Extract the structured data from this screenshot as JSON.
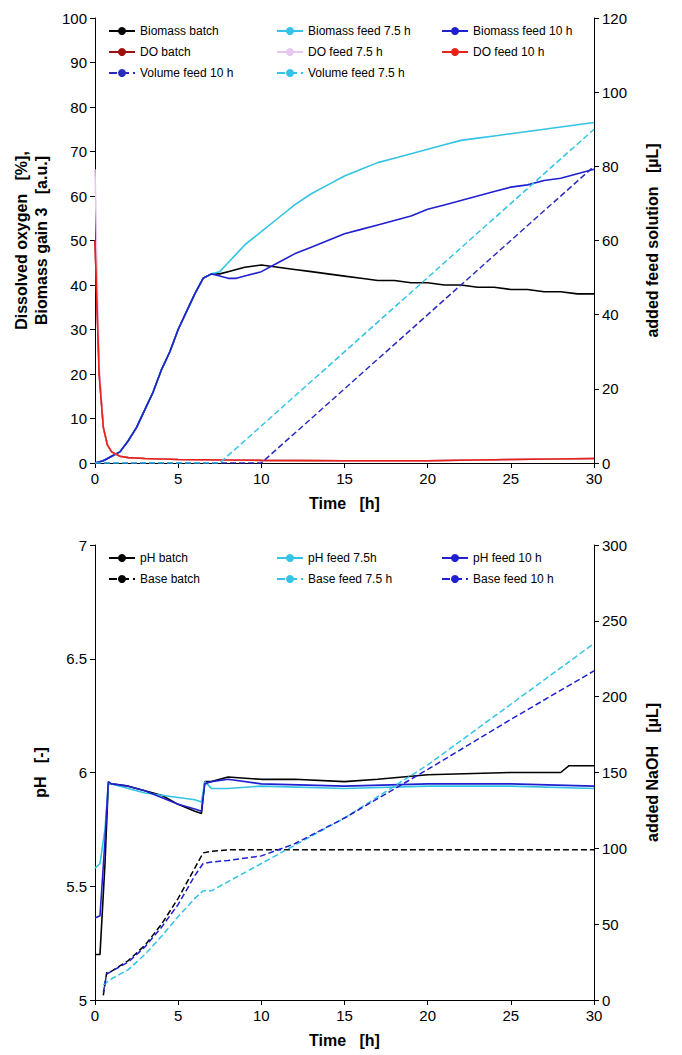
{
  "chart_data": [
    {
      "type": "line",
      "x_label": "Time   [h]",
      "y_label": "Dissolved oxygen   [%],\nBiomass gain 3   [a.u.]",
      "y2_label": "added feed solution   [µL]",
      "xlim": [
        0,
        30
      ],
      "xticks": [
        0,
        5,
        10,
        15,
        20,
        25,
        30
      ],
      "ylim": [
        0,
        100
      ],
      "yticks": [
        0,
        10,
        20,
        30,
        40,
        50,
        60,
        70,
        80,
        90,
        100
      ],
      "y2lim": [
        0,
        120
      ],
      "y2ticks": [
        0,
        20,
        40,
        60,
        80,
        100,
        120
      ],
      "grid": false,
      "legend": "upper left",
      "series": [
        {
          "name": "Biomass batch",
          "color": "#000000",
          "line_style": "solid",
          "x": [
            0,
            0.5,
            1,
            1.5,
            2,
            2.5,
            3,
            3.5,
            4,
            4.5,
            5,
            5.5,
            6,
            6.5,
            7,
            7.5,
            8,
            8.5,
            9,
            10,
            11,
            12,
            13,
            14,
            15,
            16,
            17,
            18,
            19,
            20,
            21,
            22,
            23,
            24,
            25,
            26,
            27,
            28,
            29,
            30
          ],
          "values": [
            0,
            0.5,
            1.5,
            2.5,
            5,
            8,
            12,
            16,
            21,
            25,
            30,
            34,
            38,
            41.5,
            42.5,
            42.5,
            43,
            43.5,
            44,
            44.5,
            44,
            43.5,
            43,
            42.5,
            42,
            41.5,
            41,
            41,
            40.5,
            40.5,
            40,
            40,
            39.5,
            39.5,
            39,
            39,
            38.5,
            38.5,
            38,
            38
          ]
        },
        {
          "name": "Biomass feed 7.5 h",
          "color": "#33c3e6",
          "line_style": "solid",
          "x": [
            0,
            0.5,
            1,
            1.5,
            2,
            2.5,
            3,
            3.5,
            4,
            4.5,
            5,
            5.5,
            6,
            6.5,
            7,
            7.5,
            8,
            8.5,
            9,
            10,
            11,
            12,
            13,
            14,
            15,
            16,
            17,
            18,
            19,
            20,
            21,
            22,
            23,
            24,
            25,
            26,
            27,
            28,
            29,
            30
          ],
          "values": [
            0,
            0.5,
            1.5,
            2.5,
            5,
            8,
            12,
            16,
            21,
            25,
            30,
            34,
            38,
            41.5,
            42.5,
            43,
            45,
            47,
            49,
            52,
            55,
            58,
            60.5,
            62.5,
            64.5,
            66,
            67.5,
            68.5,
            69.5,
            70.5,
            71.5,
            72.5,
            73,
            73.5,
            74,
            74.5,
            75,
            75.5,
            76,
            76.5
          ]
        },
        {
          "name": "Biomass feed 10 h",
          "color": "#2020d0",
          "line_style": "solid",
          "x": [
            0,
            0.5,
            1,
            1.5,
            2,
            2.5,
            3,
            3.5,
            4,
            4.5,
            5,
            5.5,
            6,
            6.5,
            7,
            7.5,
            8,
            8.5,
            9,
            10,
            11,
            12,
            13,
            14,
            15,
            16,
            17,
            18,
            19,
            20,
            21,
            22,
            23,
            24,
            25,
            26,
            27,
            28,
            29,
            30
          ],
          "values": [
            0,
            0.5,
            1.5,
            2.5,
            5,
            8,
            12,
            16,
            21,
            25,
            30,
            34,
            38,
            41.5,
            42.5,
            42,
            41.5,
            41.5,
            42,
            43,
            45,
            47,
            48.5,
            50,
            51.5,
            52.5,
            53.5,
            54.5,
            55.5,
            57,
            58,
            59,
            60,
            61,
            62,
            62.5,
            63.5,
            64,
            65,
            66
          ]
        },
        {
          "name": "DO batch",
          "color": "#a01010",
          "line_style": "solid",
          "x": [
            0,
            0.25,
            0.5,
            0.75,
            1,
            1.5,
            2,
            3,
            5,
            10,
            15,
            20,
            25,
            30
          ],
          "values": [
            50,
            20,
            8,
            4,
            2.5,
            1.5,
            1.2,
            1,
            0.8,
            0.6,
            0.5,
            0.5,
            0.8,
            1
          ]
        },
        {
          "name": "DO feed 7.5 h",
          "color": "#e6c8ef",
          "line_style": "solid",
          "x": [
            0,
            0.25,
            0.5,
            0.75,
            1,
            1.5,
            2,
            3,
            5,
            10,
            15,
            20,
            25,
            30
          ],
          "values": [
            66,
            22,
            8,
            4,
            2.5,
            1.5,
            1.2,
            1,
            0.8,
            0.6,
            0.5,
            0.5,
            0.8,
            1
          ]
        },
        {
          "name": "DO feed 10 h",
          "color": "#e8221b",
          "line_style": "solid",
          "x": [
            0,
            0.25,
            0.5,
            0.75,
            1,
            1.5,
            2,
            3,
            5,
            10,
            15,
            20,
            25,
            30
          ],
          "values": [
            50,
            20,
            8,
            4,
            2.5,
            1.5,
            1.2,
            1,
            0.8,
            0.6,
            0.5,
            0.5,
            0.8,
            1
          ]
        },
        {
          "name": "Volume feed 10 h",
          "color": "#2b2bbf",
          "line_style": "dashed",
          "axis": "y2",
          "x": [
            0,
            10,
            30
          ],
          "values": [
            0,
            0,
            80
          ]
        },
        {
          "name": "Volume feed 7.5 h",
          "color": "#33c3e6",
          "line_style": "dashed",
          "axis": "y2",
          "x": [
            0,
            7.5,
            30
          ],
          "values": [
            0,
            0,
            90
          ]
        }
      ]
    },
    {
      "type": "line",
      "x_label": "Time   [h]",
      "y_label": "pH   [-]",
      "y2_label": "added NaOH   [µL]",
      "xlim": [
        0,
        30
      ],
      "xticks": [
        0,
        5,
        10,
        15,
        20,
        25,
        30
      ],
      "ylim": [
        5,
        7
      ],
      "yticks": [
        5,
        5.5,
        6,
        6.5,
        7
      ],
      "y2lim": [
        0,
        300
      ],
      "y2ticks": [
        0,
        50,
        100,
        150,
        200,
        250,
        300
      ],
      "grid": false,
      "legend": "upper left",
      "series": [
        {
          "name": "pH batch",
          "color": "#000000",
          "line_style": "solid",
          "x": [
            0,
            0.3,
            0.6,
            0.8,
            1,
            2,
            3,
            4,
            5,
            6,
            6.4,
            6.6,
            7,
            8,
            10,
            12,
            15,
            17,
            20,
            25,
            28,
            28.5,
            30
          ],
          "values": [
            5.2,
            5.2,
            5.6,
            5.95,
            5.95,
            5.94,
            5.92,
            5.9,
            5.86,
            5.83,
            5.82,
            5.96,
            5.96,
            5.98,
            5.97,
            5.97,
            5.96,
            5.97,
            5.99,
            6.0,
            6.0,
            6.03,
            6.03
          ]
        },
        {
          "name": "pH feed 7.5h",
          "color": "#33c3e6",
          "line_style": "solid",
          "x": [
            0,
            0.3,
            0.6,
            0.8,
            1,
            2,
            3,
            4,
            5,
            6,
            6.4,
            6.6,
            7,
            8,
            10,
            15,
            20,
            25,
            30
          ],
          "values": [
            5.58,
            5.6,
            5.75,
            5.95,
            5.95,
            5.93,
            5.91,
            5.9,
            5.89,
            5.88,
            5.87,
            5.96,
            5.93,
            5.93,
            5.94,
            5.93,
            5.94,
            5.94,
            5.93
          ]
        },
        {
          "name": "pH feed 10 h",
          "color": "#2020d0",
          "line_style": "solid",
          "x": [
            0,
            0.3,
            0.6,
            0.8,
            1,
            2,
            3,
            4,
            5,
            6,
            6.4,
            6.6,
            7,
            8,
            10,
            15,
            20,
            25,
            30
          ],
          "values": [
            5.36,
            5.37,
            5.7,
            5.96,
            5.95,
            5.94,
            5.92,
            5.89,
            5.86,
            5.84,
            5.83,
            5.95,
            5.96,
            5.97,
            5.95,
            5.94,
            5.95,
            5.95,
            5.94
          ]
        },
        {
          "name": "Base batch",
          "color": "#000000",
          "line_style": "dashed",
          "axis": "y2",
          "x": [
            0.5,
            0.7,
            1,
            2,
            3,
            4,
            5,
            6,
            6.5,
            7,
            8,
            10,
            30
          ],
          "values": [
            3,
            18,
            19,
            26,
            36,
            50,
            67,
            87,
            97,
            98,
            99,
            99,
            99
          ]
        },
        {
          "name": "Base feed 7.5 h",
          "color": "#33c3e6",
          "line_style": "dashed",
          "axis": "y2",
          "x": [
            0.5,
            1,
            2,
            3,
            4,
            5,
            6,
            6.5,
            7,
            8,
            10,
            15,
            20,
            25,
            30
          ],
          "values": [
            10,
            14,
            20,
            30,
            42,
            55,
            67,
            72,
            72,
            78,
            90,
            120,
            155,
            195,
            235
          ]
        },
        {
          "name": "Base feed 10 h",
          "color": "#2020d0",
          "line_style": "dashed",
          "axis": "y2",
          "x": [
            0.5,
            0.7,
            1,
            2,
            3,
            4,
            5,
            6,
            6.5,
            7,
            8,
            10,
            12,
            15,
            20,
            25,
            30
          ],
          "values": [
            5,
            17,
            19,
            25,
            35,
            48,
            63,
            82,
            90,
            91,
            92,
            95,
            103,
            120,
            152,
            185,
            217
          ]
        }
      ]
    }
  ]
}
